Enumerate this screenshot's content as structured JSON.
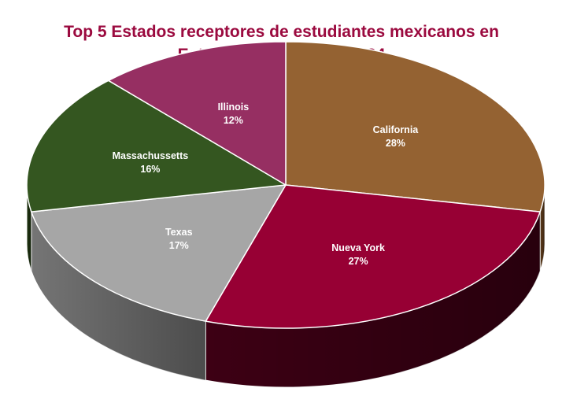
{
  "chart_data": {
    "type": "pie",
    "title_line1": "Top 5 Estados receptores de estudiantes mexicanos en",
    "title_line2": "Estados Unidos 2023/2024",
    "labels": [
      "California",
      "Nueva York",
      "Texas",
      "Massachussetts",
      "Illinois"
    ],
    "values": [
      28,
      27,
      17,
      16,
      12
    ],
    "value_labels": [
      "28%",
      "27%",
      "17%",
      "16%",
      "12%"
    ],
    "colors": [
      "#946232",
      "#970034",
      "#a6a6a6",
      "#345620",
      "#962f62"
    ],
    "side_colors": [
      "#5e3c1c",
      "#3d0014",
      "#757575",
      "#1e3310",
      "#5a1b3b"
    ],
    "legend": "none",
    "style": "3d-exploded-none"
  }
}
